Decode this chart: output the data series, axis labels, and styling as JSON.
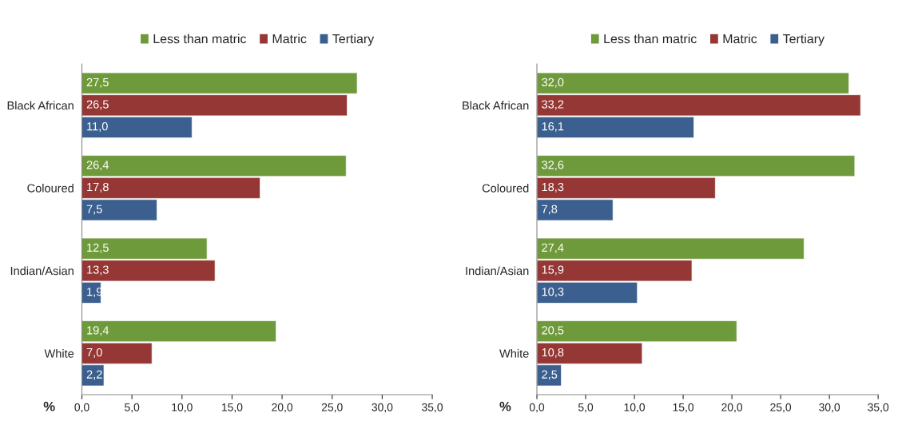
{
  "chart_data": [
    {
      "type": "bar",
      "orientation": "horizontal",
      "categories": [
        "Black African",
        "Coloured",
        "Indian/Asian",
        "White"
      ],
      "xlabel": "%",
      "series": [
        {
          "name": "Less than matric",
          "color": "#6f9a3b",
          "values": [
            27.5,
            26.4,
            12.5,
            19.4
          ],
          "value_labels": [
            "27,5",
            "26,4",
            "12,5",
            "19,4"
          ]
        },
        {
          "name": "Matric",
          "color": "#953735",
          "values": [
            26.5,
            17.8,
            13.3,
            7.0
          ],
          "value_labels": [
            "26,5",
            "17,8",
            "13,3",
            "7,0"
          ]
        },
        {
          "name": "Tertiary",
          "color": "#3b5f8e",
          "values": [
            11.0,
            7.5,
            1.9,
            2.2
          ],
          "value_labels": [
            "11,0",
            "7,5",
            "1,9",
            "2,2"
          ]
        }
      ],
      "xlim": [
        0,
        35
      ],
      "xticks": [
        {
          "value": 0,
          "label": "0,0"
        },
        {
          "value": 5,
          "label": "5,0"
        },
        {
          "value": 10,
          "label": "10,0"
        },
        {
          "value": 15,
          "label": "15,0"
        },
        {
          "value": 20,
          "label": "20,0"
        },
        {
          "value": 25,
          "label": "25,0"
        },
        {
          "value": 30,
          "label": "30,0"
        },
        {
          "value": 35,
          "label": "35,0"
        }
      ],
      "legend": "top",
      "grid": false
    },
    {
      "type": "bar",
      "orientation": "horizontal",
      "categories": [
        "Black African",
        "Coloured",
        "Indian/Asian",
        "White"
      ],
      "xlabel": "%",
      "series": [
        {
          "name": "Less than matric",
          "color": "#6f9a3b",
          "values": [
            32.0,
            32.6,
            27.4,
            20.5
          ],
          "value_labels": [
            "32,0",
            "32,6",
            "27,4",
            "20,5"
          ]
        },
        {
          "name": "Matric",
          "color": "#953735",
          "values": [
            33.2,
            18.3,
            15.9,
            10.8
          ],
          "value_labels": [
            "33,2",
            "18,3",
            "15,9",
            "10,8"
          ]
        },
        {
          "name": "Tertiary",
          "color": "#3b5f8e",
          "values": [
            16.1,
            7.8,
            10.3,
            2.5
          ],
          "value_labels": [
            "16,1",
            "7,8",
            "10,3",
            "2,5"
          ]
        }
      ],
      "xlim": [
        0,
        35
      ],
      "xticks": [
        {
          "value": 0,
          "label": "0,0"
        },
        {
          "value": 5,
          "label": "5,0"
        },
        {
          "value": 10,
          "label": "10,0"
        },
        {
          "value": 15,
          "label": "15,0"
        },
        {
          "value": 20,
          "label": "20,0"
        },
        {
          "value": 25,
          "label": "25,0"
        },
        {
          "value": 30,
          "label": "30,0"
        },
        {
          "value": 35,
          "label": "35,0"
        }
      ],
      "legend": "top",
      "grid": false
    }
  ]
}
